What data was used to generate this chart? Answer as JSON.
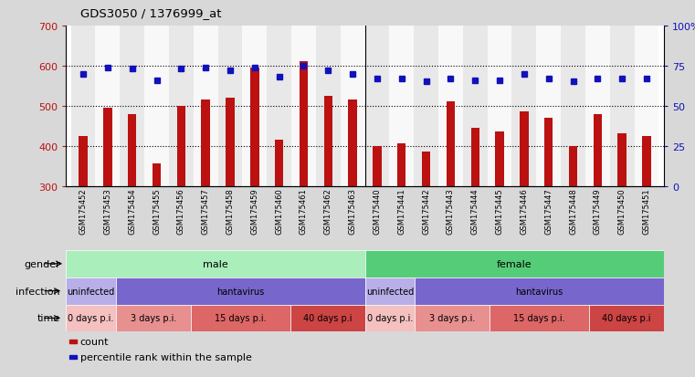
{
  "title": "GDS3050 / 1376999_at",
  "samples": [
    "GSM175452",
    "GSM175453",
    "GSM175454",
    "GSM175455",
    "GSM175456",
    "GSM175457",
    "GSM175458",
    "GSM175459",
    "GSM175460",
    "GSM175461",
    "GSM175462",
    "GSM175463",
    "GSM175440",
    "GSM175441",
    "GSM175442",
    "GSM175443",
    "GSM175444",
    "GSM175445",
    "GSM175446",
    "GSM175447",
    "GSM175448",
    "GSM175449",
    "GSM175450",
    "GSM175451"
  ],
  "counts": [
    425,
    495,
    480,
    355,
    500,
    515,
    520,
    595,
    415,
    610,
    525,
    515,
    400,
    405,
    385,
    510,
    445,
    435,
    485,
    470,
    400,
    480,
    430,
    425
  ],
  "percentiles": [
    70,
    74,
    73,
    66,
    73,
    74,
    72,
    74,
    68,
    75,
    72,
    70,
    67,
    67,
    65,
    67,
    66,
    66,
    70,
    67,
    65,
    67,
    67,
    67
  ],
  "ylim_left": [
    300,
    700
  ],
  "ylim_right": [
    0,
    100
  ],
  "yticks_left": [
    300,
    400,
    500,
    600,
    700
  ],
  "yticks_right": [
    0,
    25,
    50,
    75,
    100
  ],
  "bar_color": "#bb1111",
  "dot_color": "#1111bb",
  "bg_color": "#d8d8d8",
  "plot_bg": "#ffffff",
  "col_bg_even": "#e8e8e8",
  "col_bg_odd": "#f8f8f8",
  "male_separator": 11.5,
  "gender_row": {
    "male_count": 12,
    "female_count": 12,
    "male_color": "#aaeebb",
    "female_color": "#55cc77",
    "male_label": "male",
    "female_label": "female",
    "row_label": "gender"
  },
  "infection_row": {
    "segments": [
      {
        "label": "uninfected",
        "count": 2,
        "color": "#b8aee8"
      },
      {
        "label": "hantavirus",
        "count": 10,
        "color": "#7766cc"
      },
      {
        "label": "uninfected",
        "count": 2,
        "color": "#b8aee8"
      },
      {
        "label": "hantavirus",
        "count": 10,
        "color": "#7766cc"
      }
    ],
    "row_label": "infection"
  },
  "time_row": {
    "segments": [
      {
        "label": "0 days p.i.",
        "count": 2,
        "color": "#f4c0c0"
      },
      {
        "label": "3 days p.i.",
        "count": 3,
        "color": "#e89090"
      },
      {
        "label": "15 days p.i.",
        "count": 4,
        "color": "#dd6666"
      },
      {
        "label": "40 days p.i",
        "count": 3,
        "color": "#cc4444"
      },
      {
        "label": "0 days p.i.",
        "count": 2,
        "color": "#f4c0c0"
      },
      {
        "label": "3 days p.i.",
        "count": 3,
        "color": "#e89090"
      },
      {
        "label": "15 days p.i.",
        "count": 4,
        "color": "#dd6666"
      },
      {
        "label": "40 days p.i",
        "count": 3,
        "color": "#cc4444"
      }
    ],
    "row_label": "time"
  },
  "legend": [
    {
      "label": "count",
      "color": "#bb1111"
    },
    {
      "label": "percentile rank within the sample",
      "color": "#1111bb"
    }
  ]
}
